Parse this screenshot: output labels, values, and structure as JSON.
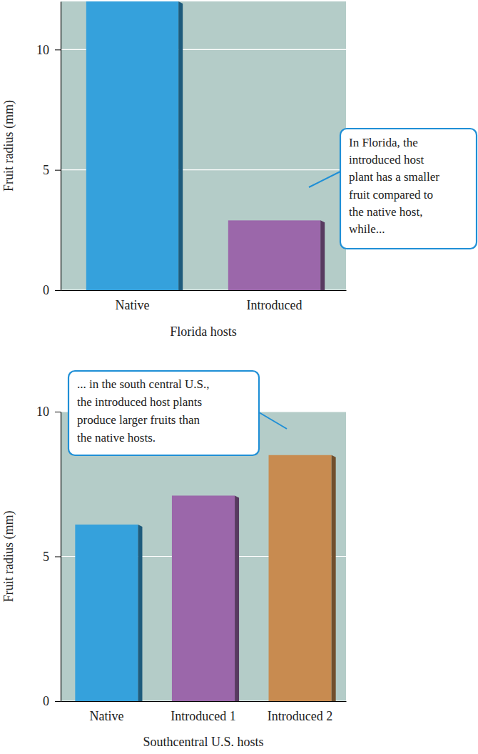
{
  "chart_data": [
    {
      "type": "bar",
      "categories": [
        "Native",
        "Introduced"
      ],
      "values": [
        12,
        2.9
      ],
      "colors": [
        "#35a1dc",
        "#9b67aa"
      ],
      "y_label": "Fruit radius (mm)",
      "x_label": "Florida hosts",
      "ylim": [
        0,
        12
      ],
      "yticks": [
        0,
        5,
        10
      ],
      "grid": true,
      "annotation": [
        "In Florida, the",
        "introduced host",
        "plant has a smaller",
        "fruit compared to",
        "the native host,",
        "while..."
      ]
    },
    {
      "type": "bar",
      "categories": [
        "Native",
        "Introduced 1",
        "Introduced 2"
      ],
      "values": [
        6.1,
        7.1,
        8.5
      ],
      "colors": [
        "#35a1dc",
        "#9b67aa",
        "#c88b50"
      ],
      "y_label": "Fruit radius (mm)",
      "x_label": "Southcentral U.S. hosts",
      "ylim": [
        0,
        10
      ],
      "yticks": [
        0,
        5,
        10
      ],
      "grid": true,
      "annotation": [
        "... in the south central U.S.,",
        "the introduced host plants",
        "produce larger fruits than",
        "the native hosts."
      ]
    }
  ]
}
